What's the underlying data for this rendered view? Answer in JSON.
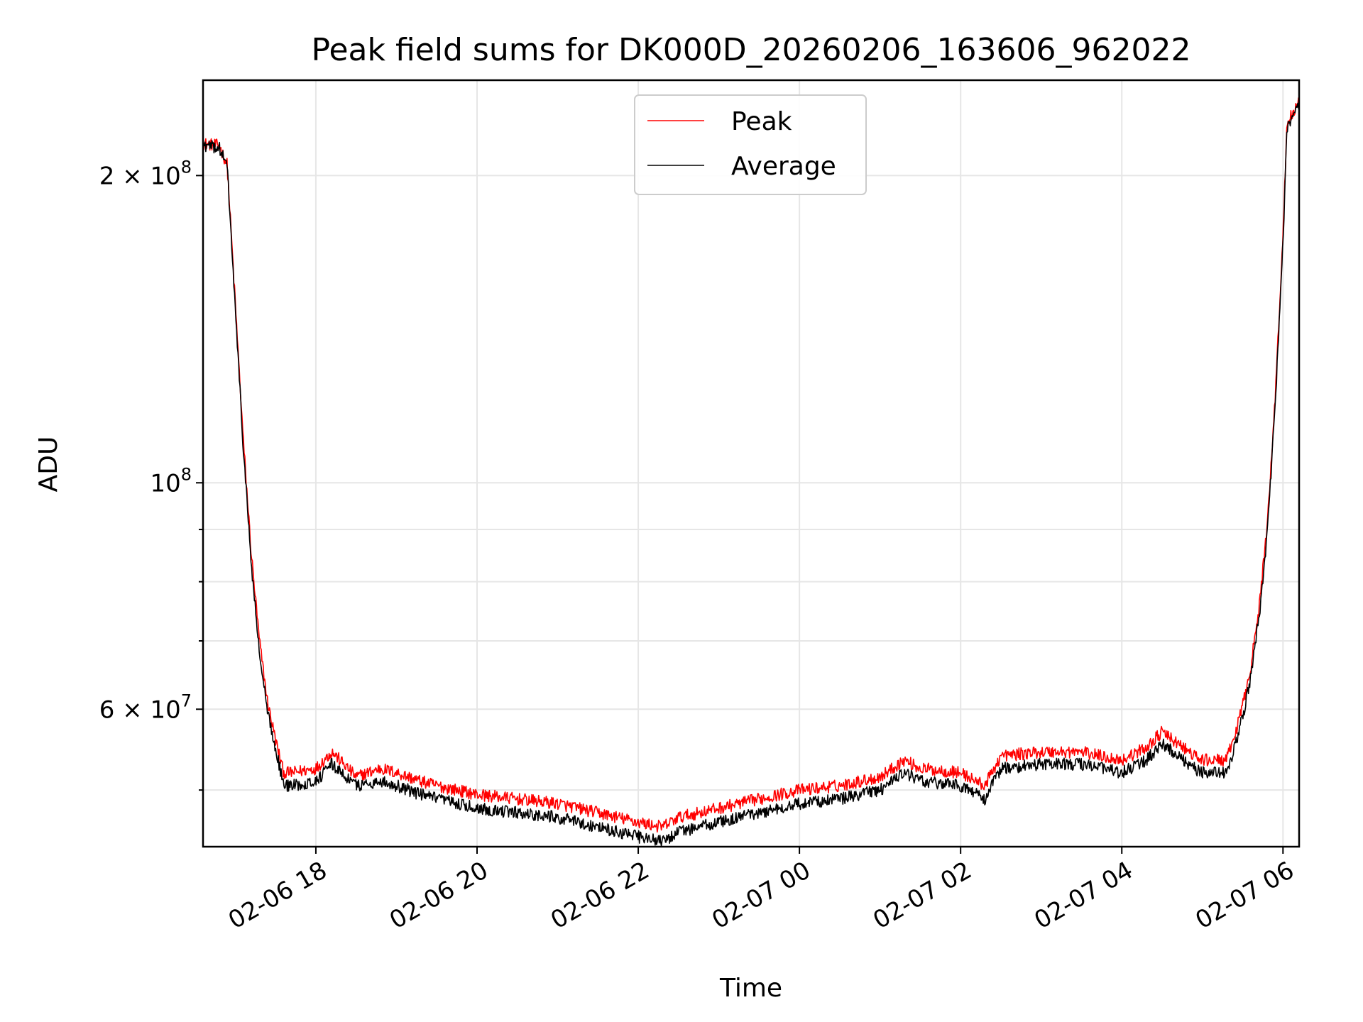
{
  "chart_data": {
    "type": "line",
    "title": "Peak field sums for DK000D_20260206_163606_962022",
    "xlabel": "Time",
    "ylabel": "ADU",
    "yscale": "log",
    "ylim": [
      44000000,
      248000000
    ],
    "xlim_hours": [
      16.6,
      30.2
    ],
    "grid": true,
    "legend_position": "upper-center",
    "x_ticks": [
      {
        "hour": 18,
        "label": "02-06 18"
      },
      {
        "hour": 20,
        "label": "02-06 20"
      },
      {
        "hour": 22,
        "label": "02-06 22"
      },
      {
        "hour": 24,
        "label": "02-07 00"
      },
      {
        "hour": 26,
        "label": "02-07 02"
      },
      {
        "hour": 28,
        "label": "02-07 04"
      },
      {
        "hour": 30,
        "label": "02-07 06"
      }
    ],
    "y_major_ticks": [
      {
        "value": 60000000,
        "label": "6 × 10",
        "exp": "7"
      },
      {
        "value": 100000000,
        "label": "10",
        "exp": "8"
      },
      {
        "value": 200000000,
        "label": "2 × 10",
        "exp": "8"
      }
    ],
    "y_minor_ticks": [
      50000000,
      70000000,
      80000000,
      90000000
    ],
    "series": [
      {
        "name": "Peak",
        "color": "#ff0000",
        "x_hours": [
          16.6,
          16.8,
          16.9,
          17.0,
          17.1,
          17.2,
          17.3,
          17.4,
          17.5,
          17.6,
          17.7,
          18.0,
          18.2,
          18.5,
          18.8,
          19.0,
          19.3,
          19.5,
          20.0,
          20.5,
          21.0,
          21.5,
          22.0,
          22.3,
          22.5,
          23.0,
          23.5,
          24.0,
          24.5,
          25.0,
          25.3,
          25.5,
          26.0,
          26.3,
          26.5,
          27.0,
          27.5,
          28.0,
          28.3,
          28.5,
          28.9,
          29.0,
          29.2,
          29.3,
          29.4,
          29.5,
          29.6,
          29.7,
          29.8,
          29.9,
          30.0,
          30.05,
          30.2
        ],
        "values": [
          215000000,
          214000000,
          205000000,
          150000000,
          110000000,
          85000000,
          70000000,
          61000000,
          56000000,
          52000000,
          52000000,
          52500000,
          54500000,
          51500000,
          52500000,
          52000000,
          51000000,
          50500000,
          49500000,
          49000000,
          48500000,
          47500000,
          46500000,
          46000000,
          47000000,
          48000000,
          49000000,
          50000000,
          50500000,
          51500000,
          53500000,
          52500000,
          52000000,
          50500000,
          54000000,
          54500000,
          54500000,
          53500000,
          55000000,
          57000000,
          54000000,
          53500000,
          53500000,
          53500000,
          56500000,
          60500000,
          66000000,
          75000000,
          90000000,
          120000000,
          175000000,
          225000000,
          236000000
        ]
      },
      {
        "name": "Average",
        "color": "#000000",
        "x_hours": [
          16.6,
          16.8,
          16.9,
          17.0,
          17.1,
          17.2,
          17.3,
          17.4,
          17.5,
          17.6,
          17.7,
          18.0,
          18.2,
          18.5,
          18.8,
          19.0,
          19.3,
          19.5,
          20.0,
          20.5,
          21.0,
          21.5,
          22.0,
          22.3,
          22.5,
          23.0,
          23.5,
          24.0,
          24.5,
          25.0,
          25.3,
          25.5,
          26.0,
          26.3,
          26.5,
          27.0,
          27.5,
          28.0,
          28.3,
          28.5,
          28.9,
          29.0,
          29.2,
          29.3,
          29.4,
          29.5,
          29.6,
          29.7,
          29.8,
          29.9,
          30.0,
          30.05,
          30.2
        ],
        "values": [
          214000000,
          213000000,
          204000000,
          148000000,
          108000000,
          83000000,
          68000000,
          59500000,
          55000000,
          50500000,
          50500000,
          51000000,
          53000000,
          50500000,
          51000000,
          50500000,
          49500000,
          49000000,
          48000000,
          47500000,
          47000000,
          46000000,
          45000000,
          44500000,
          45500000,
          46500000,
          47500000,
          48500000,
          49000000,
          50000000,
          52000000,
          51000000,
          50500000,
          49000000,
          52500000,
          53000000,
          53000000,
          52000000,
          53500000,
          55500000,
          52500000,
          52000000,
          52000000,
          52000000,
          55000000,
          59000000,
          64500000,
          73500000,
          88000000,
          118000000,
          172000000,
          222000000,
          234000000
        ]
      }
    ]
  }
}
